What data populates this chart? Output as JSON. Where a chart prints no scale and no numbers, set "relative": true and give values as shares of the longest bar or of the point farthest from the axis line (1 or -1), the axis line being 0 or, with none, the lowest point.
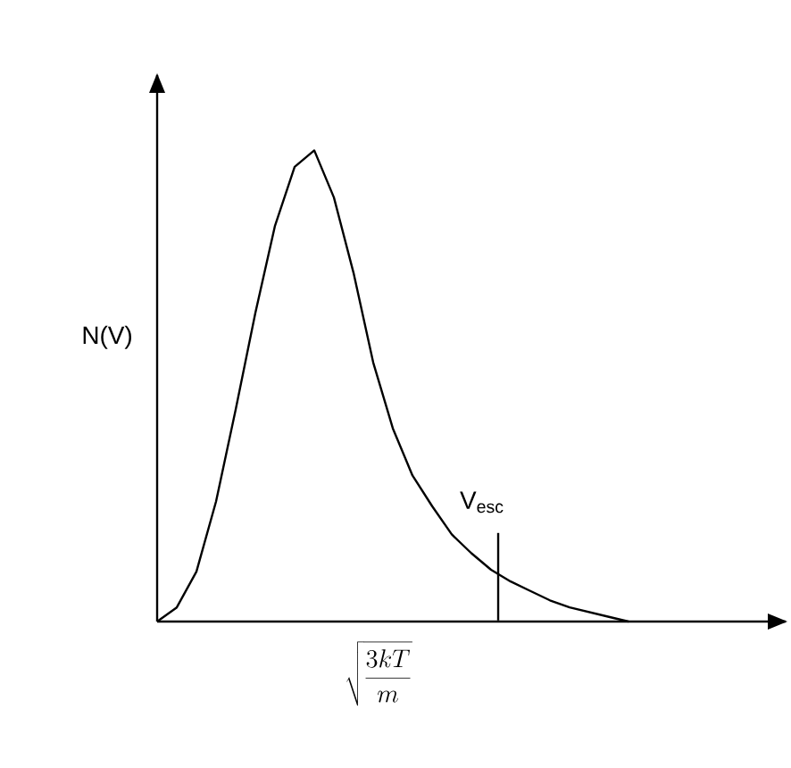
{
  "chart_data": {
    "type": "line",
    "relative": true,
    "ylabel": "N(V)",
    "categories": [
      null,
      null,
      null,
      null,
      null,
      null,
      null,
      null,
      null,
      null,
      null,
      null,
      null,
      null,
      null,
      null,
      null,
      null,
      null,
      null,
      null,
      null,
      null,
      null,
      null
    ],
    "values": [
      0,
      0.03,
      0.106,
      0.255,
      0.45,
      0.655,
      0.84,
      0.965,
      1,
      0.9,
      0.74,
      0.55,
      0.41,
      0.31,
      0.245,
      0.185,
      0.145,
      0.11,
      0.085,
      0.065,
      0.045,
      0.03,
      0.02,
      0.01,
      0
    ],
    "color": "#000000",
    "marker": "none",
    "line_style": "solid",
    "annotations": [
      "\\sqrt{\\frac{3kT}{m}}",
      "V$_{esc}$"
    ]
  }
}
